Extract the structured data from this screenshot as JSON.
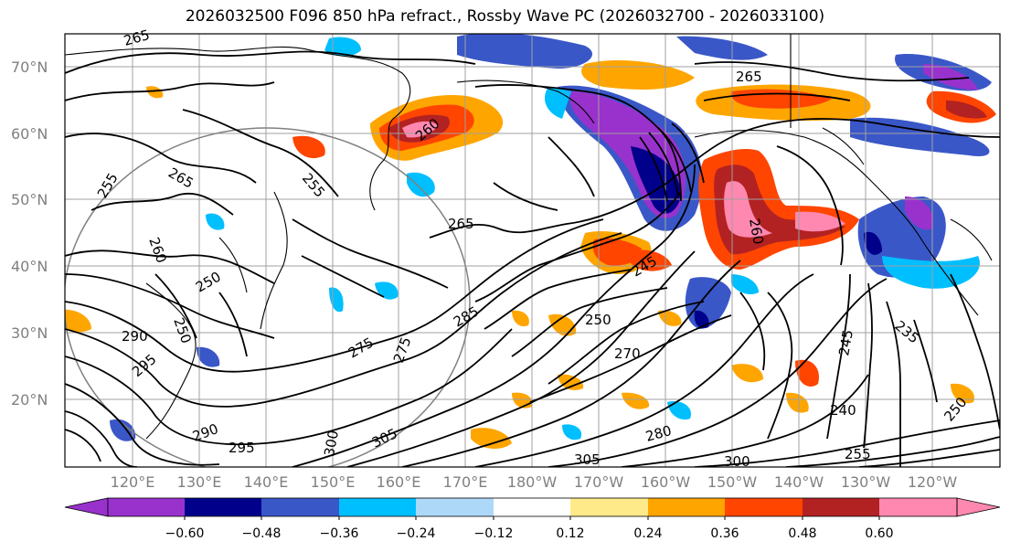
{
  "title": "2026032500 F096 850 hPa refract., Rossby Wave PC (2026032700 - 2026033100)",
  "lat_labels": [
    "70°N",
    "60°N",
    "50°N",
    "40°N",
    "30°N",
    "20°N"
  ],
  "lon_labels": [
    "120°E",
    "130°E",
    "140°E",
    "150°E",
    "160°E",
    "170°E",
    "180°W",
    "170°W",
    "160°W",
    "150°W",
    "140°W",
    "130°W",
    "120°W"
  ],
  "colorbar": {
    "ticks": [
      "−0.60",
      "−0.48",
      "−0.36",
      "−0.24",
      "−0.12",
      "0.12",
      "0.24",
      "0.36",
      "0.48",
      "0.60"
    ],
    "colors": [
      "#9932cc",
      "#00008b",
      "#3a57c8",
      "#00bfff",
      "#add8f8",
      "#ffffff",
      "#ffea8a",
      "#ffa500",
      "#ff4500",
      "#b22222",
      "#ff88b0",
      "#ff88b0"
    ]
  },
  "contour_labels": [
    "265",
    "265",
    "265",
    "260",
    "255",
    "255",
    "265",
    "260",
    "250",
    "250",
    "290",
    "295",
    "245",
    "250",
    "270",
    "275",
    "275",
    "285",
    "290",
    "295",
    "305",
    "300",
    "305",
    "300",
    "280",
    "240",
    "235",
    "245",
    "250",
    "255",
    "260"
  ],
  "colors": {
    "axis": "#000000",
    "grid": "#a0a0a0",
    "coast": "#000000",
    "tick_text": "#808080"
  }
}
